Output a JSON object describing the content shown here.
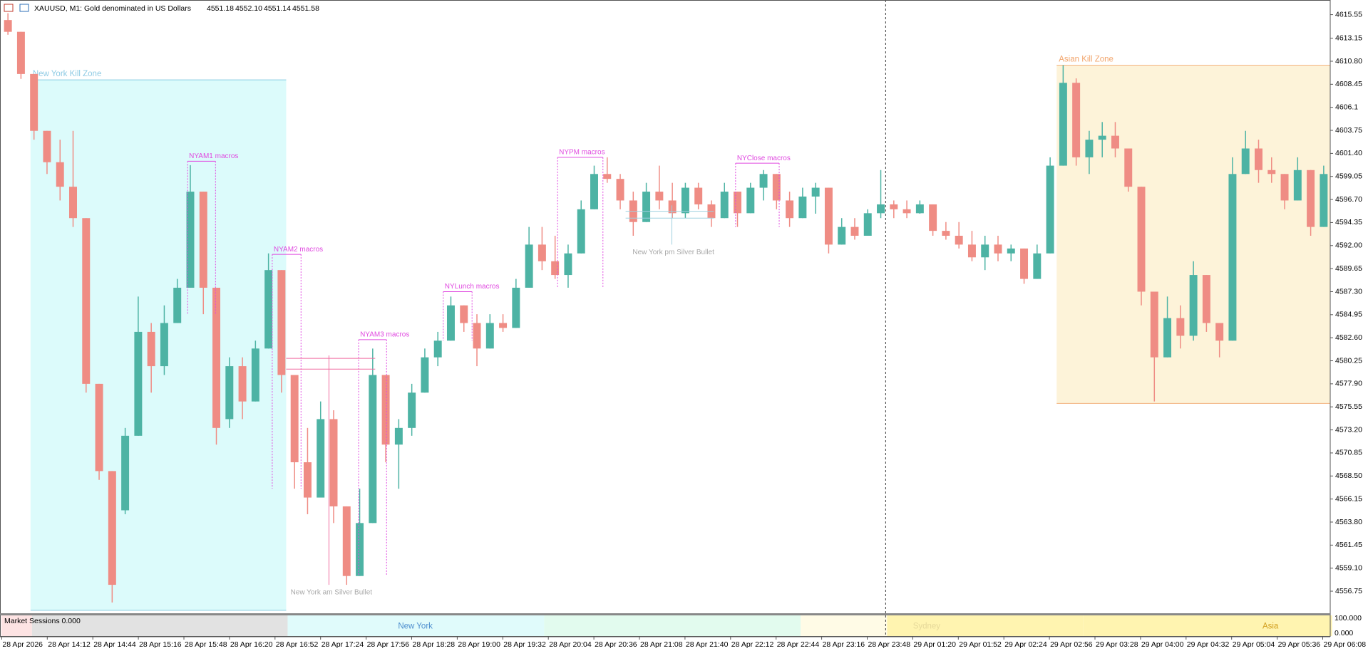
{
  "header": {
    "symbol": "XAUUSD, M1:",
    "description": "Gold denominated in US Dollars",
    "quote": [
      "4551.18",
      "4552.10",
      "4551.14",
      "4551.58"
    ]
  },
  "chart_data": {
    "type": "candlestick",
    "open": [
      4615.0,
      4613.8,
      4609.5,
      4603.7,
      4600.5,
      4598.0,
      4594.8,
      4577.9,
      4569.0,
      4565.0,
      4572.6,
      4583.2,
      4579.7,
      4584.1,
      4587.7,
      4597.5,
      4587.7,
      4574.3,
      4579.7,
      4576.1,
      4581.5,
      4589.5,
      4578.8,
      4569.9,
      4566.3,
      4574.3,
      4565.4,
      4558.3,
      4563.7,
      4578.8,
      4571.7,
      4573.4,
      4577.0,
      4580.6,
      4582.3,
      4585.9,
      4584.1,
      4581.5,
      4584.1,
      4583.6,
      4587.7,
      4592.1,
      4590.4,
      4589.0,
      4591.2,
      4595.7,
      4599.3,
      4598.8,
      4596.6,
      4594.4,
      4597.5,
      4596.6,
      4595.3,
      4597.9,
      4596.2,
      4594.8,
      4597.5,
      4595.3,
      4597.9,
      4599.3,
      4596.6,
      4594.8,
      4597.0,
      4597.9,
      4592.1,
      4593.9,
      4593.0,
      4595.3,
      4596.2,
      4595.7,
      4595.3,
      4596.2,
      4593.5,
      4593.0,
      4592.1,
      4590.8,
      4592.1,
      4591.2,
      4591.7,
      4588.6,
      4591.2,
      4600.15,
      4608.6,
      4601.0,
      4602.8,
      4603.2,
      4601.9,
      4598.0,
      4587.3,
      4580.6,
      4584.6,
      4582.8,
      4589.0,
      4584.1,
      4582.3,
      4599.3,
      4601.9,
      4599.7,
      4599.3,
      4596.6,
      4599.7,
      4593.9
    ],
    "high": [
      4615.7,
      4613.8,
      4609.5,
      4603.7,
      4602.8,
      4603.7,
      4594.8,
      4577.9,
      4569.0,
      4573.4,
      4586.8,
      4584.1,
      4585.9,
      4588.6,
      4600.2,
      4597.5,
      4587.7,
      4580.6,
      4580.6,
      4582.3,
      4591.2,
      4589.5,
      4578.8,
      4573.4,
      4576.1,
      4575.2,
      4565.4,
      4567.2,
      4581.5,
      4578.8,
      4574.3,
      4577.9,
      4581.5,
      4583.2,
      4586.8,
      4585.9,
      4585.0,
      4585.0,
      4585.0,
      4588.6,
      4593.9,
      4593.9,
      4593.0,
      4592.1,
      4596.6,
      4600.15,
      4601.0,
      4599.3,
      4597.5,
      4598.4,
      4600.15,
      4598.4,
      4598.4,
      4598.4,
      4596.6,
      4598.4,
      4597.5,
      4598.4,
      4599.7,
      4599.3,
      4597.5,
      4597.9,
      4598.4,
      4597.9,
      4594.8,
      4594.8,
      4595.7,
      4599.7,
      4596.6,
      4596.6,
      4596.6,
      4596.2,
      4594.4,
      4594.4,
      4593.5,
      4593.0,
      4593.0,
      4592.1,
      4591.7,
      4592.1,
      4601.0,
      4610.4,
      4609.05,
      4603.7,
      4604.6,
      4604.6,
      4601.9,
      4598.0,
      4587.3,
      4586.8,
      4585.9,
      4590.4,
      4589.0,
      4584.1,
      4601.0,
      4603.7,
      4602.8,
      4601.0,
      4599.3,
      4601.0,
      4599.7,
      4600.15
    ],
    "low": [
      4613.5,
      4609.0,
      4602.8,
      4599.3,
      4596.6,
      4593.9,
      4577.0,
      4568.1,
      4555.6,
      4564.6,
      4572.6,
      4577.0,
      4578.8,
      4584.1,
      4587.7,
      4585.0,
      4571.7,
      4573.4,
      4574.3,
      4576.1,
      4581.5,
      4577.0,
      4567.2,
      4564.6,
      4566.3,
      4563.7,
      4557.4,
      4558.3,
      4563.7,
      4569.9,
      4567.2,
      4572.6,
      4577.0,
      4579.7,
      4582.3,
      4583.2,
      4579.7,
      4581.5,
      4583.2,
      4583.6,
      4587.7,
      4589.5,
      4588.6,
      4587.7,
      4591.2,
      4595.7,
      4598.4,
      4595.7,
      4593.0,
      4594.4,
      4595.7,
      4594.8,
      4594.8,
      4595.7,
      4593.9,
      4594.8,
      4593.9,
      4595.3,
      4596.6,
      4595.7,
      4593.9,
      4594.8,
      4595.25,
      4591.2,
      4592.1,
      4592.6,
      4593.0,
      4594.8,
      4594.8,
      4594.8,
      4595.25,
      4593.0,
      4592.6,
      4591.7,
      4590.4,
      4589.5,
      4590.4,
      4590.4,
      4588.1,
      4588.6,
      4591.2,
      4600.15,
      4600.15,
      4599.3,
      4601.0,
      4601.0,
      4597.5,
      4585.9,
      4576.1,
      4580.6,
      4581.5,
      4582.3,
      4583.2,
      4580.6,
      4582.3,
      4599.3,
      4598.4,
      4598.4,
      4595.7,
      4596.6,
      4593.0,
      4593.9
    ],
    "close": [
      4613.8,
      4609.5,
      4603.7,
      4600.5,
      4598.0,
      4594.8,
      4577.9,
      4569.0,
      4557.4,
      4572.6,
      4583.2,
      4579.7,
      4584.1,
      4587.7,
      4597.5,
      4587.7,
      4573.4,
      4579.7,
      4576.1,
      4581.5,
      4589.5,
      4578.8,
      4569.9,
      4566.3,
      4574.3,
      4565.4,
      4558.3,
      4563.7,
      4578.8,
      4571.7,
      4573.4,
      4577.0,
      4580.6,
      4582.3,
      4585.9,
      4584.1,
      4581.5,
      4584.1,
      4583.6,
      4587.7,
      4592.1,
      4590.4,
      4589.0,
      4591.2,
      4595.7,
      4599.3,
      4598.8,
      4596.6,
      4594.4,
      4597.5,
      4596.6,
      4595.3,
      4597.9,
      4596.2,
      4594.8,
      4597.5,
      4595.3,
      4597.9,
      4599.3,
      4596.6,
      4594.8,
      4597.0,
      4597.9,
      4592.1,
      4593.9,
      4593.0,
      4595.3,
      4596.2,
      4595.7,
      4595.3,
      4596.2,
      4593.5,
      4593.0,
      4592.1,
      4590.8,
      4592.1,
      4591.2,
      4591.7,
      4588.6,
      4591.2,
      4600.15,
      4608.6,
      4601.0,
      4602.8,
      4603.2,
      4601.9,
      4598.0,
      4587.3,
      4580.6,
      4584.6,
      4582.8,
      4589.0,
      4584.1,
      4582.3,
      4599.3,
      4601.9,
      4599.7,
      4599.3,
      4596.6,
      4599.7,
      4593.9,
      4599.3
    ],
    "up_color": "#4db3a4",
    "down_color": "#ef8c84",
    "ylim": [
      4554.5,
      4616.9
    ],
    "yticks": [
      4615.55,
      4613.15,
      {
        "value": 4610.8,
        "label": "4610.80"
      },
      4608.45,
      4606.1,
      4603.75,
      {
        "value": 4601.4,
        "label": "4601.40"
      },
      4599.05,
      {
        "value": 4596.7,
        "label": "4596.70"
      },
      4594.35,
      {
        "value": 4592,
        "label": "4592.00"
      },
      4589.65,
      {
        "value": 4587.3,
        "label": "4587.30"
      },
      4584.95,
      {
        "value": 4582.6,
        "label": "4582.60"
      },
      4580.25,
      {
        "value": 4577.9,
        "label": "4577.90"
      },
      4575.55,
      {
        "value": 4573.2,
        "label": "4573.20"
      },
      4570.85,
      {
        "value": 4568.5,
        "label": "4568.50"
      },
      4566.15,
      {
        "value": 4563.8,
        "label": "4563.80"
      },
      4561.45,
      {
        "value": 4559.1,
        "label": "4559.10"
      },
      4556.75
    ],
    "grid": false,
    "x_labels": [
      "28 Apr 2026",
      "28 Apr 14:12",
      "28 Apr 14:44",
      "28 Apr 15:16",
      "28 Apr 15:48",
      "28 Apr 16:20",
      "28 Apr 16:52",
      "28 Apr 17:24",
      "28 Apr 17:56",
      "28 Apr 18:28",
      "28 Apr 19:00",
      "28 Apr 19:32",
      "28 Apr 20:04",
      "28 Apr 20:36",
      "28 Apr 21:08",
      "28 Apr 21:40",
      "28 Apr 22:12",
      "28 Apr 22:44",
      "28 Apr 23:16",
      "28 Apr 23:48",
      "29 Apr 01:20",
      "29 Apr 01:52",
      "29 Apr 02:24",
      "29 Apr 02:56",
      "29 Apr 03:28",
      "29 Apr 04:00",
      "29 Apr 04:32",
      "29 Apr 05:04",
      "29 Apr 05:36",
      "29 Apr 06:08"
    ],
    "zones": [
      {
        "label": "New York Kill Zone",
        "high": 4608.9,
        "low": 4554.8,
        "fill": "#dcfbfb",
        "line": "#86cde3",
        "text_color": "#8fcbe4"
      },
      {
        "label": "Asian Kill Zone",
        "high": 4610.4,
        "low": 4575.9,
        "fill": "#fdf3d9",
        "line": "#f3b27f",
        "text_color": "#f2a66e"
      }
    ],
    "macros": [
      {
        "label": "NYAM1 macros",
        "high": 4600.6
      },
      {
        "label": "NYAM2 macros",
        "high": 4591.1
      },
      {
        "label": "NYAM3 macros",
        "high": 4582.4
      },
      {
        "label": "NYLunch macros",
        "high": 4587.3
      },
      {
        "label": "NYPM macros",
        "high": 4601.0
      },
      {
        "label": "NYClose macros",
        "high": 4600.4
      }
    ],
    "macro_color": "#e04ae0",
    "silver_bullets": [
      {
        "label": "New York am Silver Bullet",
        "levels": [
          4580.5,
          4579.4
        ],
        "high": 4580.8,
        "low": 4557.4,
        "color": "#f06ca0"
      },
      {
        "label": "New York pm Silver Bullet",
        "levels": [
          4595.5,
          4594.8
        ],
        "high": 4596.1,
        "low": 4592.1,
        "color": "#9fd0e0"
      }
    ],
    "indicator": {
      "label": "Market Sessions 0.000",
      "yticks": [
        "100.000",
        "0.000"
      ],
      "sessions": [
        {
          "color": "#fde3e3"
        },
        {
          "color": "#e2e2e2"
        },
        {
          "name": "New York",
          "color": "#e0fbfb",
          "text_color": "#4f8fcf"
        },
        {
          "color": "#e2fbee"
        },
        {
          "color": "#fffbe6"
        },
        {
          "name": "Sydney",
          "color": "#fff4b0",
          "text_color": "#e6d99a"
        },
        {
          "name": "Asia",
          "color": "#fff4b0",
          "text_color": "#d2a020"
        }
      ]
    }
  }
}
